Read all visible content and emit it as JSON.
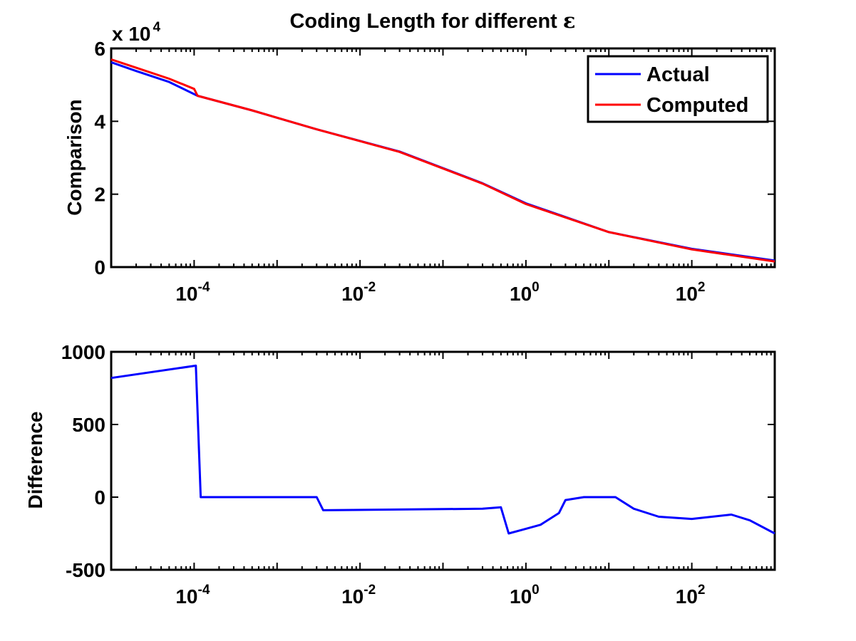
{
  "figure": {
    "title_main": "Coding Length for different ",
    "title_symbol": "ε"
  },
  "chart_data": [
    {
      "type": "line",
      "title": "Coding Length for different ε",
      "xlabel": "",
      "ylabel": "Comparison",
      "x_scale": "log",
      "xlim": [
        1e-05,
        1000
      ],
      "ylim": [
        0,
        60000
      ],
      "y_multiplier": {
        "base": "x 10",
        "exponent": "4"
      },
      "xticks": [
        {
          "value": 0.0001,
          "base": "10",
          "exp": "-4"
        },
        {
          "value": 0.01,
          "base": "10",
          "exp": "-2"
        },
        {
          "value": 1,
          "base": "10",
          "exp": "0"
        },
        {
          "value": 100,
          "base": "10",
          "exp": "2"
        }
      ],
      "yticks": [
        {
          "value": 0,
          "label": "0"
        },
        {
          "value": 20000,
          "label": "2"
        },
        {
          "value": 40000,
          "label": "4"
        },
        {
          "value": 60000,
          "label": "6"
        }
      ],
      "grid": false,
      "legend": "top-right",
      "series": [
        {
          "name": "Actual",
          "color": "#0000ff",
          "points": [
            [
              1e-05,
              56200
            ],
            [
              2e-05,
              53800
            ],
            [
              5e-05,
              50800
            ],
            [
              0.00011,
              47000
            ],
            [
              0.0005,
              43000
            ],
            [
              0.003,
              37800
            ],
            [
              0.03,
              31700
            ],
            [
              0.3,
              23000
            ],
            [
              1,
              17500
            ],
            [
              10,
              9600
            ],
            [
              100,
              5000
            ],
            [
              1000,
              1800
            ]
          ]
        },
        {
          "name": "Computed",
          "color": "#ff0000",
          "points": [
            [
              1e-05,
              57000
            ],
            [
              2e-05,
              54700
            ],
            [
              5e-05,
              51700
            ],
            [
              0.0001,
              48900
            ],
            [
              0.00011,
              47000
            ],
            [
              0.0005,
              43000
            ],
            [
              0.003,
              37800
            ],
            [
              0.03,
              31600
            ],
            [
              0.3,
              22900
            ],
            [
              1,
              17300
            ],
            [
              10,
              9600
            ],
            [
              100,
              4850
            ],
            [
              1000,
              1550
            ]
          ]
        }
      ]
    },
    {
      "type": "line",
      "title": "",
      "xlabel": "",
      "ylabel": "Difference",
      "x_scale": "log",
      "xlim": [
        1e-05,
        1000
      ],
      "ylim": [
        -500,
        1000
      ],
      "xticks": [
        {
          "value": 0.0001,
          "base": "10",
          "exp": "-4"
        },
        {
          "value": 0.01,
          "base": "10",
          "exp": "-2"
        },
        {
          "value": 1,
          "base": "10",
          "exp": "0"
        },
        {
          "value": 100,
          "base": "10",
          "exp": "2"
        }
      ],
      "yticks": [
        {
          "value": -500,
          "label": "-500"
        },
        {
          "value": 0,
          "label": "0"
        },
        {
          "value": 500,
          "label": "500"
        },
        {
          "value": 1000,
          "label": "1000"
        }
      ],
      "grid": false,
      "series": [
        {
          "color": "#0000ff",
          "points": [
            [
              1e-05,
              820
            ],
            [
              0.000105,
              905
            ],
            [
              0.00012,
              0
            ],
            [
              0.003,
              0
            ],
            [
              0.0036,
              -90
            ],
            [
              0.3,
              -80
            ],
            [
              0.5,
              -70
            ],
            [
              0.62,
              -250
            ],
            [
              0.9,
              -225
            ],
            [
              1.5,
              -190
            ],
            [
              2.5,
              -110
            ],
            [
              3,
              -20
            ],
            [
              5,
              0
            ],
            [
              12,
              0
            ],
            [
              20,
              -80
            ],
            [
              40,
              -135
            ],
            [
              100,
              -150
            ],
            [
              300,
              -120
            ],
            [
              500,
              -160
            ],
            [
              1000,
              -250
            ]
          ]
        }
      ]
    }
  ]
}
